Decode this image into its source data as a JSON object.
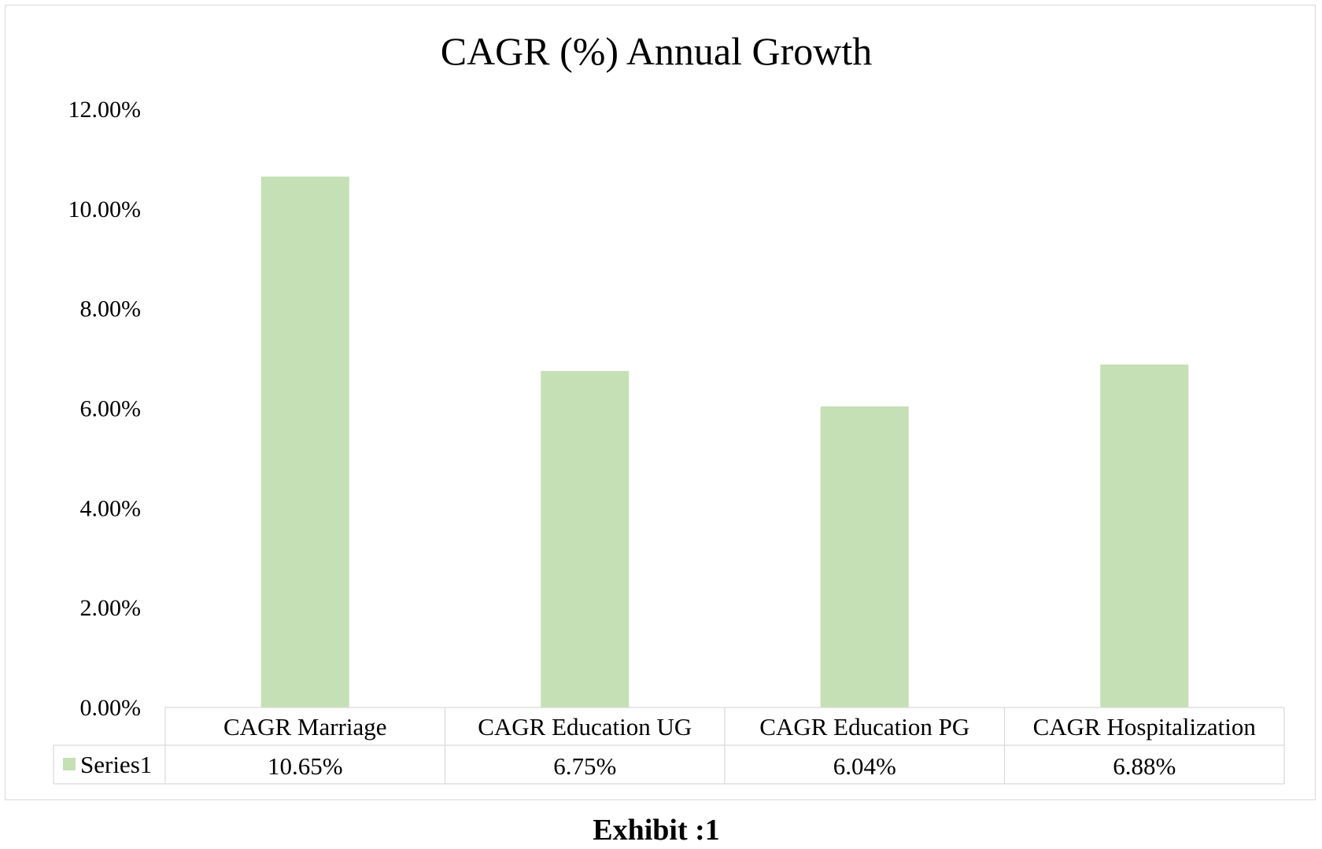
{
  "chart_data": {
    "type": "bar",
    "title": "CAGR (%) Annual Growth",
    "categories": [
      "CAGR Marriage",
      "CAGR Education UG",
      "CAGR Education PG",
      "CAGR Hospitalization"
    ],
    "series": [
      {
        "name": "Series1",
        "values": [
          10.65,
          6.75,
          6.04,
          6.88
        ],
        "labels": [
          "10.65%",
          "6.75%",
          "6.04%",
          "6.88%"
        ],
        "color": "#c5e0b4"
      }
    ],
    "ylim": [
      0,
      12
    ],
    "yticks": [
      0,
      2,
      4,
      6,
      8,
      10,
      12
    ],
    "ytick_labels": [
      "0.00%",
      "2.00%",
      "4.00%",
      "6.00%",
      "8.00%",
      "10.00%",
      "12.00%"
    ],
    "xlabel": "",
    "ylabel": "",
    "grid": false,
    "legend": "data-table",
    "border_color": "#d9d9d9"
  },
  "caption": "Exhibit :1"
}
